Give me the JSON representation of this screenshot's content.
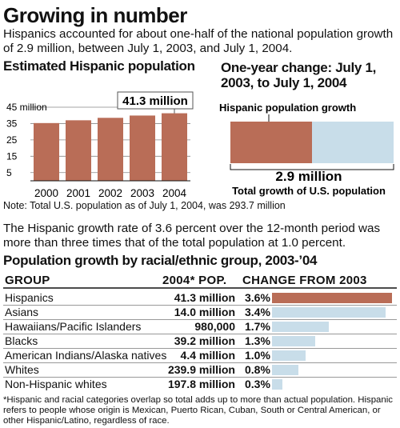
{
  "title": "Growing in number",
  "intro": "Hispanics accounted for about one-half of the national population growth of 2.9 million, between July 1, 2003, and July 1, 2004.",
  "bar_section": {
    "heading": "Estimated Hispanic population",
    "callout": "41.3 million"
  },
  "growth_section": {
    "heading": "One-year change: July 1, 2003, to July 1, 2004",
    "hispanic_label": "Hispanic population growth",
    "total_value": "2.9 million",
    "total_label": "Total growth of U.S. population"
  },
  "note": "Note: Total U.S. population as of July 1, 2004, was 293.7 million",
  "paragraph": "The Hispanic growth rate of 3.6 percent over the 12-month period was more than three times that of the total population at 1.0 percent.",
  "table": {
    "heading": "Population growth by racial/ethnic group, 2003-’04",
    "col_group": "GROUP",
    "col_pop": "2004* POP.",
    "col_change": "CHANGE FROM 2003",
    "rows": [
      {
        "group": "Hispanics",
        "pop": "41.3 million",
        "change": "3.6%",
        "value": 3.6
      },
      {
        "group": "Asians",
        "pop": "14.0 million",
        "change": "3.4%",
        "value": 3.4
      },
      {
        "group": "Hawaiians/Pacific Islanders",
        "pop": "980,000",
        "change": "1.7%",
        "value": 1.7
      },
      {
        "group": "Blacks",
        "pop": "39.2 million",
        "change": "1.3%",
        "value": 1.3
      },
      {
        "group": "American Indians/Alaska natives",
        "pop": "4.4 million",
        "change": "1.0%",
        "value": 1.0
      },
      {
        "group": "Whites",
        "pop": "239.9 million",
        "change": "0.8%",
        "value": 0.8
      },
      {
        "group": "Non-Hispanic whites",
        "pop": "197.8 million",
        "change": "0.3%",
        "value": 0.3
      }
    ]
  },
  "footnote": "*Hispanic and racial categories overlap so total adds up to more than actual population. Hispanic refers to people whose origin is Mexican, Puerto Rican, Cuban, South or Central American, or other Hispanic/Latino, regardless of race.",
  "colors": {
    "hispanic": "#b96d57",
    "other": "#c8dde9",
    "grid": "#888888"
  },
  "chart_data": [
    {
      "type": "bar",
      "title": "Estimated Hispanic population",
      "categories": [
        "2000",
        "2001",
        "2002",
        "2003",
        "2004"
      ],
      "values": [
        35.3,
        37.0,
        38.5,
        39.9,
        41.3
      ],
      "ylim": [
        0,
        45
      ],
      "yticks": [
        5,
        15,
        25,
        35,
        45
      ],
      "ytick_labels": [
        "5",
        "15",
        "25",
        "35",
        "45 million"
      ],
      "grid": true
    },
    {
      "type": "bar",
      "title": "One-year change: July 1, 2003, to July 1, 2004",
      "series": [
        {
          "name": "Hispanic population growth",
          "value": 0.5
        },
        {
          "name": "Total growth of U.S. population",
          "value": 1.0
        }
      ],
      "total": "2.9 million"
    },
    {
      "type": "bar",
      "title": "Population growth by racial/ethnic group, 2003-’04",
      "categories": [
        "Hispanics",
        "Asians",
        "Hawaiians/Pacific Islanders",
        "Blacks",
        "American Indians/Alaska natives",
        "Whites",
        "Non-Hispanic whites"
      ],
      "values": [
        3.6,
        3.4,
        1.7,
        1.3,
        1.0,
        0.8,
        0.3
      ],
      "unit": "%"
    }
  ]
}
